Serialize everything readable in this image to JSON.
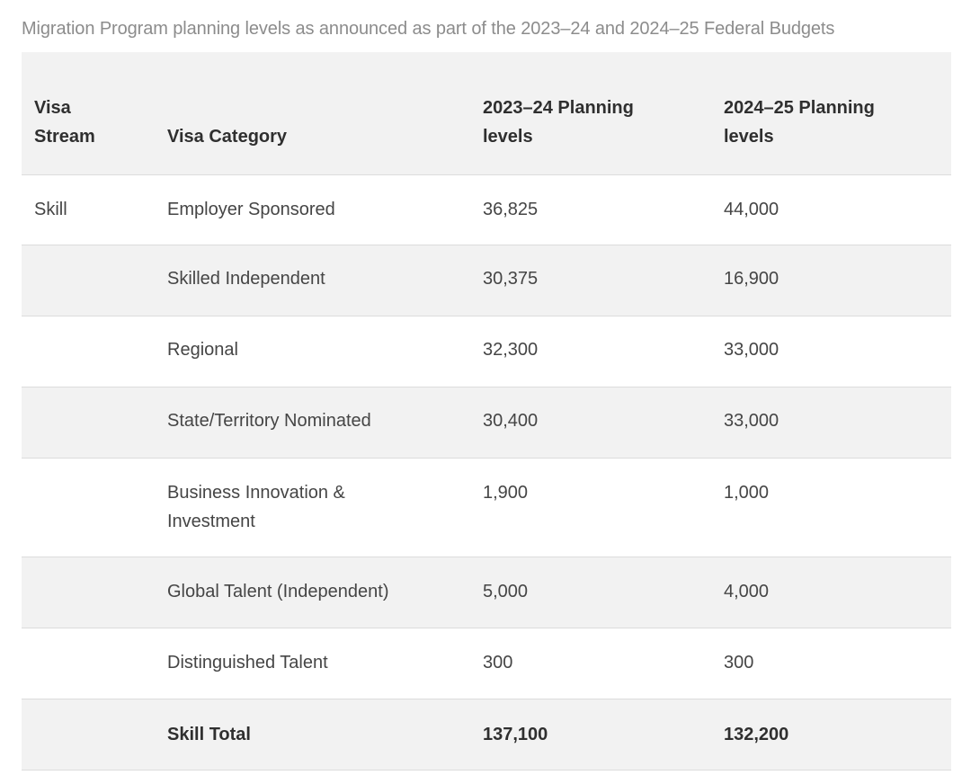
{
  "caption": "Migration Program planning levels as announced as part of the 2023–24 and 2024–25 Federal Budgets",
  "table": {
    "headers": {
      "visa_stream": "Visa Stream",
      "visa_category": "Visa Category",
      "planning_2023_24": "2023–24 Planning levels",
      "planning_2024_25": "2024–25 Planning levels"
    },
    "rows": [
      {
        "stream": "Skill",
        "category": "Employer Sponsored",
        "y2023": "36,825",
        "y2024": "44,000"
      },
      {
        "stream": "",
        "category": "Skilled Independent",
        "y2023": "30,375",
        "y2024": "16,900"
      },
      {
        "stream": "",
        "category": "Regional",
        "y2023": "32,300",
        "y2024": "33,000"
      },
      {
        "stream": "",
        "category": "State/Territory Nominated",
        "y2023": "30,400",
        "y2024": "33,000"
      },
      {
        "stream": "",
        "category": "Business Innovation & Investment",
        "y2023": "1,900",
        "y2024": "1,000"
      },
      {
        "stream": "",
        "category": "Global Talent (Independent)",
        "y2023": "5,000",
        "y2024": "4,000"
      },
      {
        "stream": "",
        "category": "Distinguished Talent",
        "y2023": "300",
        "y2024": "300"
      }
    ],
    "total": {
      "stream": "",
      "category": "Skill Total",
      "y2023": "137,100",
      "y2024": "132,200"
    }
  }
}
